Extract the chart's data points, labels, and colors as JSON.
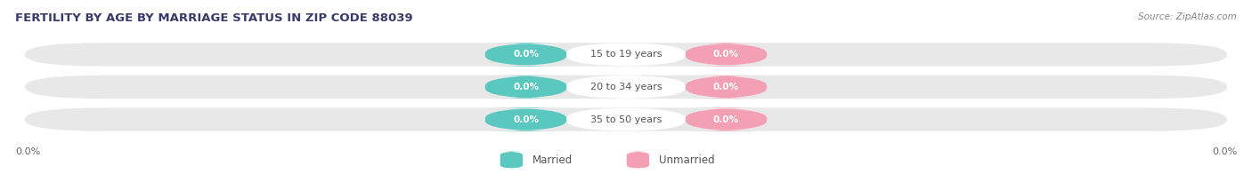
{
  "title": "FERTILITY BY AGE BY MARRIAGE STATUS IN ZIP CODE 88039",
  "source": "Source: ZipAtlas.com",
  "categories": [
    "15 to 19 years",
    "20 to 34 years",
    "35 to 50 years"
  ],
  "married_values": [
    0.0,
    0.0,
    0.0
  ],
  "unmarried_values": [
    0.0,
    0.0,
    0.0
  ],
  "married_color": "#5BC8C0",
  "unmarried_color": "#F4A0B4",
  "row_bg_color": "#E8E8E8",
  "center_box_color": "#FFFFFF",
  "title_color": "#3A3A6A",
  "source_color": "#888888",
  "label_color": "#555555",
  "axis_label_color": "#666666",
  "background_color": "#FFFFFF",
  "title_fontsize": 9.5,
  "source_fontsize": 7.5,
  "bar_label_fontsize": 7.5,
  "cat_label_fontsize": 8,
  "axis_fontsize": 8,
  "legend_fontsize": 8.5,
  "figsize": [
    14.06,
    1.96
  ],
  "dpi": 100
}
